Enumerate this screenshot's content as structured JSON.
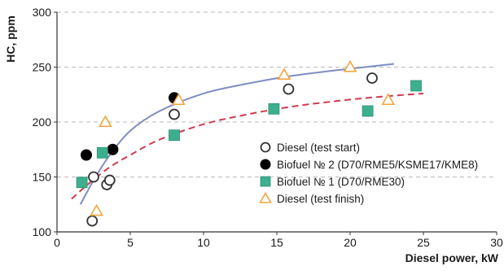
{
  "chart_data": {
    "type": "scatter",
    "xlabel": "Diesel power, kW",
    "ylabel": "HC, ppm",
    "xlim": [
      0,
      30
    ],
    "ylim": [
      100,
      300
    ],
    "xticks": [
      0,
      5,
      10,
      15,
      20,
      25,
      30
    ],
    "yticks": [
      100,
      150,
      200,
      250,
      300
    ],
    "grid": "horizontal dashed",
    "legend_position": "center-right",
    "series": [
      {
        "name": "Diesel (test start)",
        "marker": "open-circle",
        "color": "#333333",
        "points": [
          [
            2.4,
            110
          ],
          [
            2.5,
            150
          ],
          [
            3.4,
            143
          ],
          [
            3.6,
            147
          ],
          [
            8.0,
            207
          ],
          [
            15.8,
            230
          ],
          [
            21.5,
            240
          ]
        ]
      },
      {
        "name": "Biofuel № 2 (D70/RME5/KSME17/KME8)",
        "marker": "filled-circle",
        "color": "#000000",
        "points": [
          [
            2.0,
            170
          ],
          [
            3.8,
            175
          ],
          [
            8.0,
            222
          ]
        ]
      },
      {
        "name": "Biofuel № 1 (D70/RME30)",
        "marker": "filled-square",
        "color": "#3daf8f",
        "points": [
          [
            1.7,
            145
          ],
          [
            3.1,
            172
          ],
          [
            8.0,
            188
          ],
          [
            14.8,
            212
          ],
          [
            21.2,
            210
          ],
          [
            24.5,
            233
          ]
        ]
      },
      {
        "name": "Diesel (test finish)",
        "marker": "open-triangle",
        "color": "#f3a53c",
        "points": [
          [
            2.7,
            119
          ],
          [
            3.3,
            200
          ],
          [
            8.3,
            220
          ],
          [
            15.5,
            243
          ],
          [
            20.0,
            250
          ],
          [
            22.6,
            220
          ]
        ]
      }
    ],
    "trend_lines": [
      {
        "style": "solid",
        "color": "#7e8dc2",
        "points": [
          [
            1.6,
            125
          ],
          [
            2.5,
            147
          ],
          [
            3.5,
            168
          ],
          [
            5,
            192
          ],
          [
            7,
            210
          ],
          [
            10,
            226
          ],
          [
            13,
            235
          ],
          [
            16,
            242
          ],
          [
            19,
            247
          ],
          [
            21,
            250
          ],
          [
            23,
            253
          ]
        ]
      },
      {
        "style": "dashed",
        "color": "#d23a4e",
        "points": [
          [
            1.0,
            130
          ],
          [
            2,
            142
          ],
          [
            3.5,
            158
          ],
          [
            5,
            170
          ],
          [
            7,
            184
          ],
          [
            10,
            198
          ],
          [
            13,
            207
          ],
          [
            16,
            214
          ],
          [
            19,
            219
          ],
          [
            22,
            223
          ],
          [
            25,
            226
          ]
        ]
      }
    ]
  }
}
